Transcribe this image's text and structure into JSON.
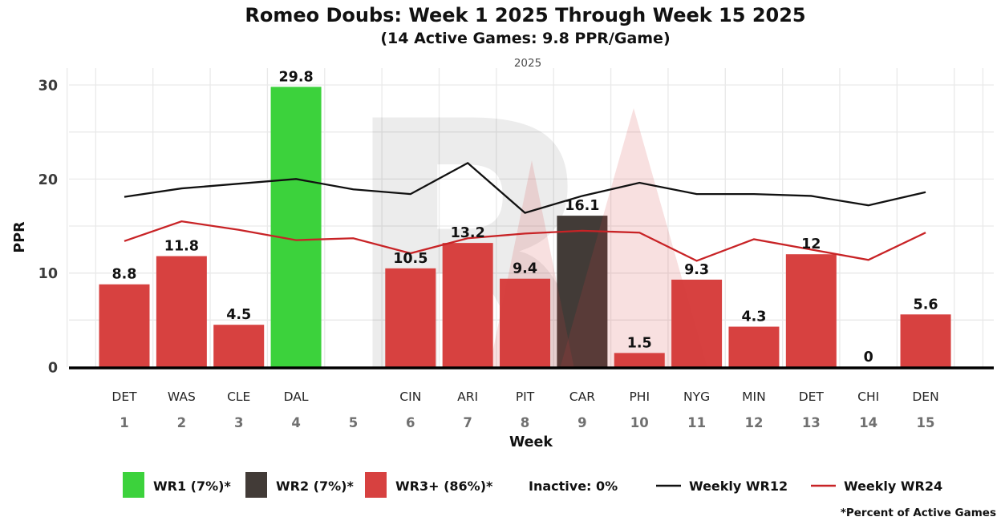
{
  "title": "Romeo Doubs: Week 1 2025 Through Week 15 2025",
  "subtitle": "(14 Active Games: 9.8 PPR/Game)",
  "facet_label": "2025",
  "y_axis": {
    "label": "PPR",
    "ticks": [
      0,
      10,
      20,
      30
    ],
    "grid_step": 5
  },
  "x_axis": {
    "label": "Week"
  },
  "colors": {
    "wr1": "#3cd23c",
    "wr2": "#423b37",
    "wr3": "#d74140",
    "wr12_line": "#111111",
    "wr24_line": "#c82326",
    "grid": "#e9e9e9",
    "baseline": "#000000",
    "tick_label": "#3c3c3c",
    "team_label": "#262626",
    "week_number": "#707070",
    "watermark_grey": "#000000",
    "watermark_red": "#d63c3c"
  },
  "legend": {
    "wr1_label": "WR1 (7%)*",
    "wr2_label": "WR2 (7%)*",
    "wr3_label": "WR3+ (86%)*",
    "inactive_label": "Inactive: 0%",
    "wr12_label": "Weekly WR12",
    "wr24_label": "Weekly WR24"
  },
  "footnote": "*Percent of Active Games",
  "chart_data": {
    "type": "bar+line",
    "title": "Romeo Doubs: Week 1 2025 Through Week 15 2025",
    "xlabel": "Week",
    "ylabel": "PPR",
    "ylim": [
      0,
      31.8
    ],
    "grid": true,
    "weeks": [
      1,
      2,
      3,
      4,
      5,
      6,
      7,
      8,
      9,
      10,
      11,
      12,
      13,
      14,
      15
    ],
    "teams": [
      "DET",
      "WAS",
      "CLE",
      "DAL",
      "",
      "CIN",
      "ARI",
      "PIT",
      "CAR",
      "PHI",
      "NYG",
      "MIN",
      "DET",
      "CHI",
      "DEN"
    ],
    "bars": {
      "values": [
        8.8,
        11.8,
        4.5,
        29.8,
        null,
        10.5,
        13.2,
        9.4,
        16.1,
        1.5,
        9.3,
        4.3,
        12,
        0,
        5.6
      ],
      "labels": [
        "8.8",
        "11.8",
        "4.5",
        "29.8",
        "",
        "10.5",
        "13.2",
        "9.4",
        "16.1",
        "1.5",
        "9.3",
        "4.3",
        "12",
        "0",
        "5.6"
      ],
      "tiers": [
        "wr3",
        "wr3",
        "wr3",
        "wr1",
        "",
        "wr3",
        "wr3",
        "wr3",
        "wr2",
        "wr3",
        "wr3",
        "wr3",
        "wr3",
        "wr3",
        "wr3"
      ]
    },
    "series": [
      {
        "name": "Weekly WR12",
        "color_key": "wr12_line",
        "values": [
          18.1,
          19.0,
          19.5,
          20.0,
          18.9,
          18.4,
          21.7,
          16.4,
          18.2,
          19.6,
          18.4,
          18.4,
          18.2,
          17.2,
          18.6
        ]
      },
      {
        "name": "Weekly WR24",
        "color_key": "wr24_line",
        "values": [
          13.4,
          15.5,
          14.6,
          13.5,
          13.7,
          12.1,
          13.7,
          14.2,
          14.5,
          14.3,
          11.3,
          13.6,
          12.5,
          11.4,
          14.3
        ]
      }
    ]
  }
}
